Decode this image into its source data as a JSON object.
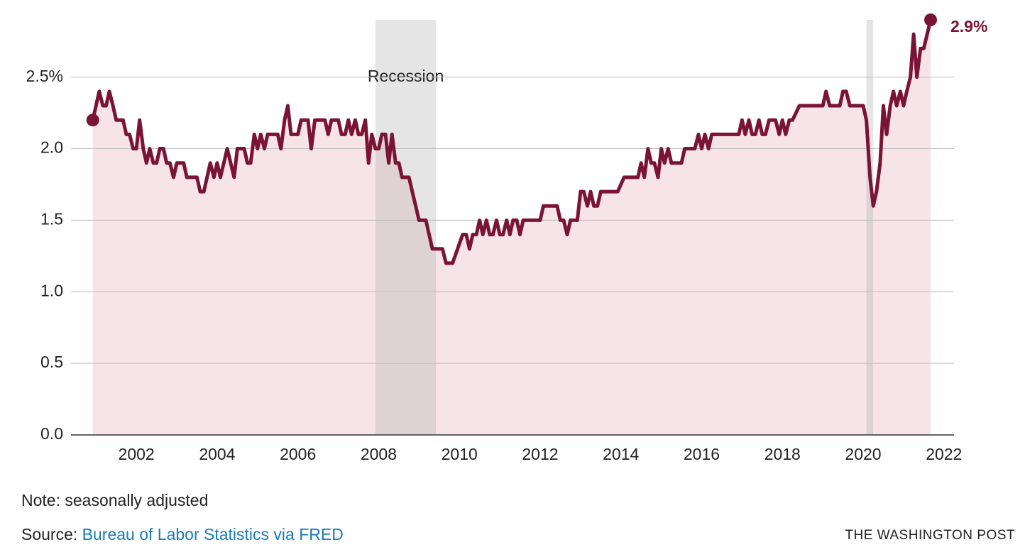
{
  "chart_data": {
    "type": "line",
    "annotation": "Recession",
    "end_label": "2.9%",
    "note": "Note: seasonally adjusted",
    "source_prefix": "Source:",
    "source_link": "Bureau of Labor Statistics via FRED",
    "credit": "THE WASHINGTON POST",
    "recessions": [
      [
        2007.92,
        2009.42
      ],
      [
        2020.08,
        2020.25
      ]
    ],
    "xlim": [
      2000.38,
      2022.25
    ],
    "xticks": [
      2002,
      2004,
      2006,
      2008,
      2010,
      2012,
      2014,
      2016,
      2018,
      2020,
      2022
    ],
    "ylim": [
      0,
      2.9
    ],
    "yticks": [
      {
        "value": 0,
        "label": "0.0"
      },
      {
        "value": 0.5,
        "label": "0.5"
      },
      {
        "value": 1,
        "label": "1.0"
      },
      {
        "value": 1.5,
        "label": "1.5"
      },
      {
        "value": 2,
        "label": "2.0"
      },
      {
        "value": 2.5,
        "label": "2.5%"
      }
    ],
    "grid": true,
    "series": [
      {
        "color": "#7a1436",
        "x": [
          2000.92,
          2001.08,
          2001.17,
          2001.25,
          2001.33,
          2001.42,
          2001.5,
          2001.67,
          2001.75,
          2001.83,
          2001.92,
          2002.0,
          2002.08,
          2002.17,
          2002.25,
          2002.33,
          2002.42,
          2002.5,
          2002.58,
          2002.67,
          2002.75,
          2002.83,
          2002.92,
          2003.0,
          2003.08,
          2003.17,
          2003.25,
          2003.5,
          2003.58,
          2003.67,
          2003.83,
          2003.92,
          2004.0,
          2004.08,
          2004.25,
          2004.42,
          2004.5,
          2004.67,
          2004.75,
          2004.83,
          2004.92,
          2005.0,
          2005.08,
          2005.17,
          2005.25,
          2005.5,
          2005.58,
          2005.67,
          2005.75,
          2005.83,
          2006.0,
          2006.08,
          2006.25,
          2006.33,
          2006.42,
          2006.67,
          2006.75,
          2006.83,
          2007.0,
          2007.08,
          2007.17,
          2007.25,
          2007.33,
          2007.42,
          2007.5,
          2007.58,
          2007.67,
          2007.75,
          2007.83,
          2007.92,
          2008.0,
          2008.08,
          2008.17,
          2008.25,
          2008.33,
          2008.42,
          2008.5,
          2008.58,
          2008.75,
          2009.0,
          2009.17,
          2009.33,
          2009.58,
          2009.67,
          2009.83,
          2010.08,
          2010.17,
          2010.25,
          2010.33,
          2010.42,
          2010.5,
          2010.58,
          2010.67,
          2010.75,
          2010.83,
          2010.92,
          2011.0,
          2011.08,
          2011.17,
          2011.25,
          2011.33,
          2011.42,
          2011.5,
          2011.58,
          2012.0,
          2012.08,
          2012.42,
          2012.5,
          2012.58,
          2012.67,
          2012.75,
          2012.92,
          2013.0,
          2013.08,
          2013.17,
          2013.25,
          2013.33,
          2013.42,
          2013.5,
          2013.92,
          2014.08,
          2014.42,
          2014.5,
          2014.58,
          2014.67,
          2014.75,
          2014.83,
          2014.92,
          2015.0,
          2015.08,
          2015.17,
          2015.25,
          2015.5,
          2015.58,
          2015.83,
          2015.92,
          2016.0,
          2016.08,
          2016.17,
          2016.25,
          2016.92,
          2017.0,
          2017.08,
          2017.17,
          2017.25,
          2017.33,
          2017.42,
          2017.5,
          2017.58,
          2017.67,
          2017.83,
          2017.92,
          2018.0,
          2018.08,
          2018.17,
          2018.25,
          2018.42,
          2019.0,
          2019.08,
          2019.17,
          2019.42,
          2019.5,
          2019.58,
          2019.67,
          2020.0,
          2020.08,
          2020.17,
          2020.25,
          2020.33,
          2020.42,
          2020.5,
          2020.58,
          2020.67,
          2020.75,
          2020.83,
          2020.92,
          2021.0,
          2021.08,
          2021.17,
          2021.25,
          2021.33,
          2021.42,
          2021.5,
          2021.67
        ],
        "values": [
          2.2,
          2.4,
          2.3,
          2.3,
          2.4,
          2.3,
          2.2,
          2.2,
          2.1,
          2.1,
          2.0,
          2.0,
          2.2,
          2.0,
          1.9,
          2.0,
          1.9,
          1.9,
          2.0,
          2.0,
          1.9,
          1.9,
          1.8,
          1.9,
          1.9,
          1.9,
          1.8,
          1.8,
          1.7,
          1.7,
          1.9,
          1.8,
          1.9,
          1.8,
          2.0,
          1.8,
          2.0,
          2.0,
          1.9,
          1.9,
          2.1,
          2.0,
          2.1,
          2.0,
          2.1,
          2.1,
          2.0,
          2.2,
          2.3,
          2.1,
          2.1,
          2.2,
          2.2,
          2.0,
          2.2,
          2.2,
          2.1,
          2.2,
          2.2,
          2.1,
          2.1,
          2.2,
          2.1,
          2.2,
          2.1,
          2.1,
          2.2,
          1.9,
          2.1,
          2.0,
          2.0,
          2.1,
          2.1,
          1.9,
          2.1,
          1.9,
          1.9,
          1.8,
          1.8,
          1.5,
          1.5,
          1.3,
          1.3,
          1.2,
          1.2,
          1.4,
          1.4,
          1.3,
          1.4,
          1.4,
          1.5,
          1.4,
          1.5,
          1.4,
          1.4,
          1.5,
          1.4,
          1.4,
          1.5,
          1.4,
          1.5,
          1.5,
          1.4,
          1.5,
          1.5,
          1.6,
          1.6,
          1.5,
          1.5,
          1.4,
          1.5,
          1.5,
          1.7,
          1.7,
          1.6,
          1.7,
          1.6,
          1.6,
          1.7,
          1.7,
          1.8,
          1.8,
          1.9,
          1.8,
          2.0,
          1.9,
          1.9,
          1.8,
          2.0,
          1.9,
          2.0,
          1.9,
          1.9,
          2.0,
          2.0,
          2.1,
          2.0,
          2.1,
          2.0,
          2.1,
          2.1,
          2.2,
          2.1,
          2.2,
          2.1,
          2.1,
          2.2,
          2.1,
          2.1,
          2.2,
          2.2,
          2.1,
          2.2,
          2.1,
          2.2,
          2.2,
          2.3,
          2.3,
          2.4,
          2.3,
          2.3,
          2.4,
          2.4,
          2.3,
          2.3,
          2.2,
          1.8,
          1.6,
          1.7,
          1.9,
          2.3,
          2.1,
          2.3,
          2.4,
          2.3,
          2.4,
          2.3,
          2.4,
          2.5,
          2.8,
          2.5,
          2.7,
          2.7,
          2.9
        ]
      }
    ]
  }
}
